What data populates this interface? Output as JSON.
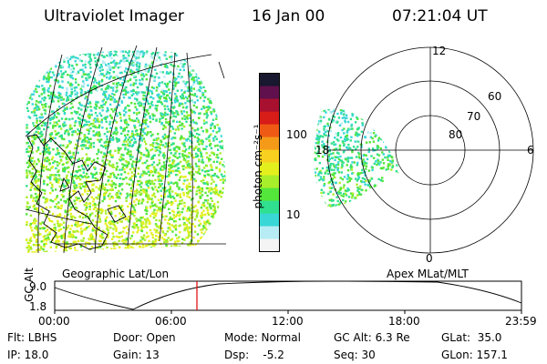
{
  "header": {
    "title": "Ultraviolet Imager",
    "date": "16 Jan 00",
    "time": "07:21:04 UT"
  },
  "colorbar": {
    "unit_label": "photon cm⁻²s⁻¹",
    "ticks": [
      "100",
      "10"
    ],
    "colors": [
      "#f4f4f4",
      "#b8ecf4",
      "#3ad7d7",
      "#30e090",
      "#54e63a",
      "#a8ee2a",
      "#e4f01e",
      "#f8d020",
      "#f49a18",
      "#ee5a14",
      "#d81c18",
      "#a81030",
      "#60104c",
      "#181830"
    ]
  },
  "polar_plot": {
    "lat_labels": [
      "60",
      "70",
      "80"
    ],
    "mlt_labels": {
      "top": "12",
      "left": "18",
      "right": "6",
      "bottom": "0"
    }
  },
  "geo_plot": {
    "caption": "Geographic Lat/Lon"
  },
  "apex_caption": "Apex MLat/MLT",
  "altitude_strip": {
    "axis_label": "GC Alt",
    "y_max": "9.0",
    "y_min": "1.8",
    "time_ticks": [
      "00:00",
      "06:00",
      "12:00",
      "18:00",
      "23:59"
    ],
    "cursor_color": "#e00000"
  },
  "info": {
    "flt": "Flt: LBHS",
    "ip": "IP: 18.0",
    "door": "Door: Open",
    "gain": "Gain: 13",
    "mode": "Mode: Normal",
    "dsp": "Dsp:    -5.2",
    "gc_alt": "GC Alt: 6.3 Re",
    "seq": "Seq: 30",
    "glat": "GLat:  35.0",
    "glon": "GLon: 157.1"
  }
}
